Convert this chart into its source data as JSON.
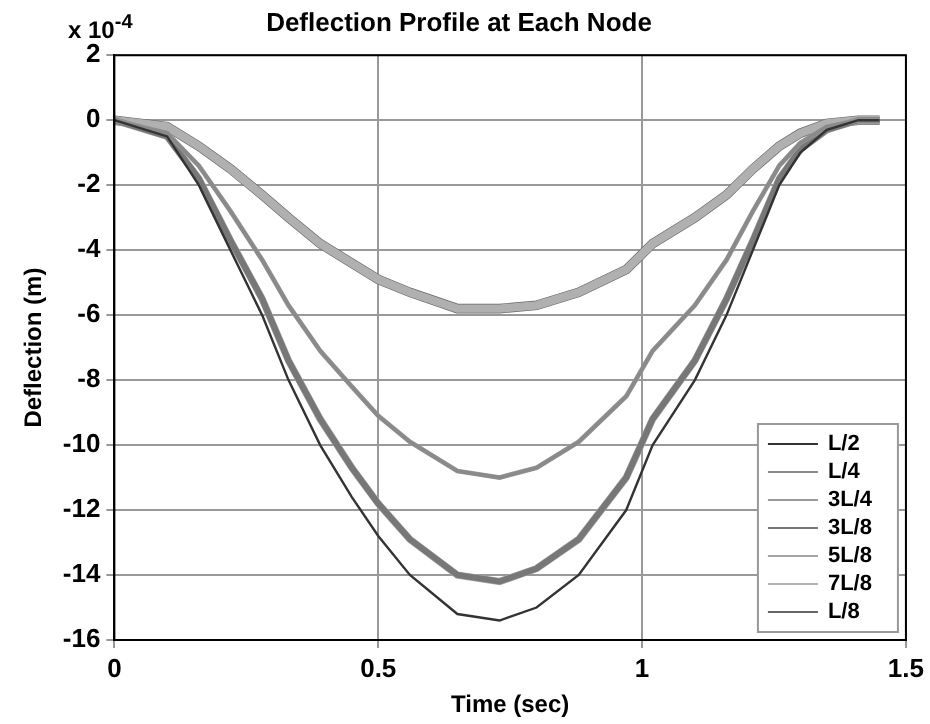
{
  "chart_data": {
    "type": "line",
    "title": "Deflection Profile at Each Node",
    "xlabel": "Time (sec)",
    "ylabel": "Deflection (m)",
    "annotations": [
      "x 10$^{-4}$"
    ],
    "x": [
      0,
      0.1,
      0.16,
      0.22,
      0.28,
      0.33,
      0.39,
      0.45,
      0.5,
      0.56,
      0.65,
      0.73,
      0.8,
      0.88,
      0.97,
      1.02,
      1.1,
      1.16,
      1.21,
      1.26,
      1.3,
      1.35,
      1.41,
      1.45
    ],
    "series": [
      {
        "name": "L/2",
        "color": "#333333",
        "values": [
          0,
          -0.5,
          -2,
          -4,
          -6,
          -8,
          -10,
          -11.6,
          -12.8,
          -14,
          -15.2,
          -15.4,
          -15,
          -14,
          -12,
          -10,
          -8,
          -6,
          -4,
          -2,
          -1,
          -0.3,
          0,
          0
        ]
      },
      {
        "name": "L/4",
        "color": "#8a8a8a",
        "values": [
          0,
          -0.4,
          -1.4,
          -2.8,
          -4.3,
          -5.7,
          -7.1,
          -8.2,
          -9.1,
          -9.9,
          -10.8,
          -11,
          -10.7,
          -9.9,
          -8.5,
          -7.1,
          -5.7,
          -4.3,
          -2.8,
          -1.4,
          -0.7,
          -0.2,
          0,
          0
        ]
      },
      {
        "name": "3L/4",
        "color": "#9a9a9a",
        "values": [
          0,
          -0.4,
          -1.4,
          -2.8,
          -4.3,
          -5.7,
          -7.1,
          -8.2,
          -9.1,
          -9.9,
          -10.8,
          -11,
          -10.7,
          -9.9,
          -8.5,
          -7.1,
          -5.7,
          -4.3,
          -2.8,
          -1.4,
          -0.7,
          -0.2,
          0,
          0
        ]
      },
      {
        "name": "3L/8",
        "color": "#777777",
        "values": [
          0,
          -0.5,
          -1.8,
          -3.7,
          -5.5,
          -7.4,
          -9.2,
          -10.7,
          -11.8,
          -12.9,
          -14,
          -14.2,
          -13.8,
          -12.9,
          -11,
          -9.2,
          -7.4,
          -5.5,
          -3.7,
          -1.8,
          -0.9,
          -0.3,
          0,
          0
        ]
      },
      {
        "name": "5L/8",
        "color": "#a5a5a5",
        "values": [
          0,
          -0.5,
          -1.8,
          -3.7,
          -5.5,
          -7.4,
          -9.2,
          -10.7,
          -11.8,
          -12.9,
          -14,
          -14.2,
          -13.8,
          -12.9,
          -11,
          -9.2,
          -7.4,
          -5.5,
          -3.7,
          -1.8,
          -0.9,
          -0.3,
          0,
          0
        ]
      },
      {
        "name": "7L/8",
        "color": "#b0b0b0",
        "values": [
          0,
          -0.2,
          -0.8,
          -1.5,
          -2.3,
          -3,
          -3.8,
          -4.4,
          -4.9,
          -5.3,
          -5.8,
          -5.8,
          -5.7,
          -5.3,
          -4.6,
          -3.8,
          -3,
          -2.3,
          -1.5,
          -0.8,
          -0.4,
          -0.1,
          0,
          0
        ]
      },
      {
        "name": "L/8",
        "color": "#666666",
        "values": [
          0,
          -0.2,
          -0.8,
          -1.5,
          -2.3,
          -3,
          -3.8,
          -4.4,
          -4.9,
          -5.3,
          -5.8,
          -5.8,
          -5.7,
          -5.3,
          -4.6,
          -3.8,
          -3,
          -2.3,
          -1.5,
          -0.8,
          -0.4,
          -0.1,
          0,
          0
        ]
      }
    ],
    "xlim": [
      0,
      1.5
    ],
    "xticks": [
      0,
      0.5,
      1,
      1.5
    ],
    "ylim": [
      -16,
      2
    ],
    "yticks": [
      -16,
      -14,
      -12,
      -10,
      -8,
      -6,
      -4,
      -2,
      0,
      2
    ],
    "grid": true,
    "legend": "bottom right",
    "marker": "none",
    "line_style": "solid"
  }
}
